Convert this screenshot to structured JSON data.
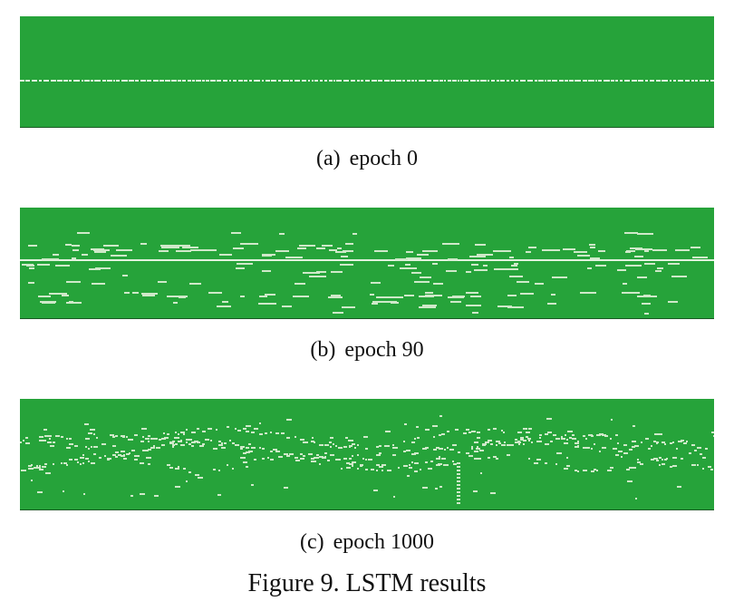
{
  "colors": {
    "background": "#26a33a",
    "note": "#cfe9c9",
    "line": "#e2f2de",
    "bottom_rule": "#1c5a26"
  },
  "panels": [
    {
      "tag": "(a)",
      "label": "epoch 0"
    },
    {
      "tag": "(b)",
      "label": "epoch 90"
    },
    {
      "tag": "(c)",
      "label": "epoch 1000"
    }
  ],
  "figure_title": "Figure 9. LSTM results"
}
